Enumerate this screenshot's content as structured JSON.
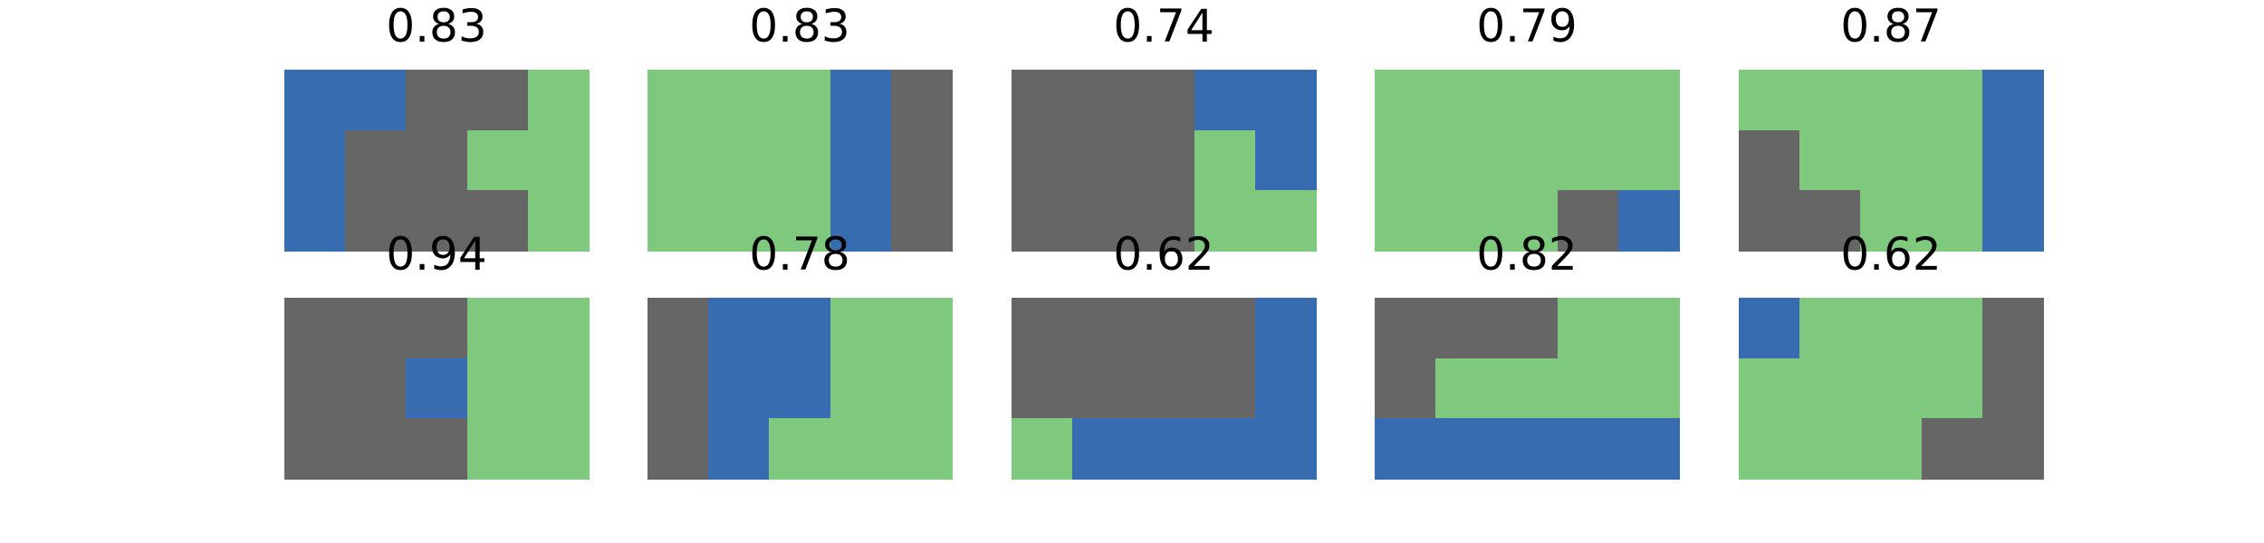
{
  "palette": {
    "gray": "#666666",
    "blue": "#386cb0",
    "green": "#7fc97f"
  },
  "panels": [
    {
      "title": "0.83",
      "grid": [
        [
          "blue",
          "blue",
          "gray",
          "gray",
          "green"
        ],
        [
          "blue",
          "gray",
          "gray",
          "green",
          "green"
        ],
        [
          "blue",
          "gray",
          "gray",
          "gray",
          "green"
        ]
      ]
    },
    {
      "title": "0.83",
      "grid": [
        [
          "green",
          "green",
          "green",
          "blue",
          "gray"
        ],
        [
          "green",
          "green",
          "green",
          "blue",
          "gray"
        ],
        [
          "green",
          "green",
          "green",
          "blue",
          "gray"
        ]
      ]
    },
    {
      "title": "0.74",
      "grid": [
        [
          "gray",
          "gray",
          "gray",
          "blue",
          "blue"
        ],
        [
          "gray",
          "gray",
          "gray",
          "green",
          "blue"
        ],
        [
          "gray",
          "gray",
          "gray",
          "green",
          "green"
        ]
      ]
    },
    {
      "title": "0.79",
      "grid": [
        [
          "green",
          "green",
          "green",
          "green",
          "green"
        ],
        [
          "green",
          "green",
          "green",
          "green",
          "green"
        ],
        [
          "green",
          "green",
          "green",
          "gray",
          "blue"
        ]
      ]
    },
    {
      "title": "0.87",
      "grid": [
        [
          "green",
          "green",
          "green",
          "green",
          "blue"
        ],
        [
          "gray",
          "green",
          "green",
          "green",
          "blue"
        ],
        [
          "gray",
          "gray",
          "green",
          "green",
          "blue"
        ]
      ]
    },
    {
      "title": "0.94",
      "grid": [
        [
          "gray",
          "gray",
          "gray",
          "green",
          "green"
        ],
        [
          "gray",
          "gray",
          "blue",
          "green",
          "green"
        ],
        [
          "gray",
          "gray",
          "gray",
          "green",
          "green"
        ]
      ]
    },
    {
      "title": "0.78",
      "grid": [
        [
          "gray",
          "blue",
          "blue",
          "green",
          "green"
        ],
        [
          "gray",
          "blue",
          "blue",
          "green",
          "green"
        ],
        [
          "gray",
          "blue",
          "green",
          "green",
          "green"
        ]
      ]
    },
    {
      "title": "0.62",
      "grid": [
        [
          "gray",
          "gray",
          "gray",
          "gray",
          "blue"
        ],
        [
          "gray",
          "gray",
          "gray",
          "gray",
          "blue"
        ],
        [
          "green",
          "blue",
          "blue",
          "blue",
          "blue"
        ]
      ]
    },
    {
      "title": "0.82",
      "grid": [
        [
          "gray",
          "gray",
          "gray",
          "green",
          "green"
        ],
        [
          "gray",
          "green",
          "green",
          "green",
          "green"
        ],
        [
          "blue",
          "blue",
          "blue",
          "blue",
          "blue"
        ]
      ]
    },
    {
      "title": "0.62",
      "grid": [
        [
          "blue",
          "green",
          "green",
          "green",
          "gray"
        ],
        [
          "green",
          "green",
          "green",
          "green",
          "gray"
        ],
        [
          "green",
          "green",
          "green",
          "gray",
          "gray"
        ]
      ]
    }
  ]
}
